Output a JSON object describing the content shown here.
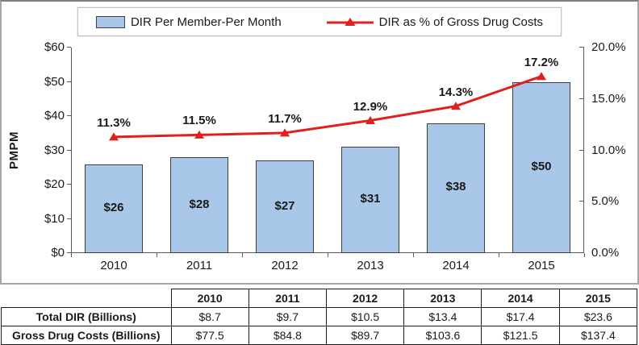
{
  "legend": {
    "bar_label": "DIR Per Member-Per Month",
    "line_label": "DIR as % of Gross Drug Costs"
  },
  "chart_data": {
    "type": "bar+line combo",
    "categories": [
      "2010",
      "2011",
      "2012",
      "2013",
      "2014",
      "2015"
    ],
    "series": [
      {
        "name": "DIR Per Member-Per Month",
        "type": "bar",
        "axis": "left",
        "values": [
          26,
          28,
          27,
          31,
          38,
          50
        ],
        "labels": [
          "$26",
          "$28",
          "$27",
          "$31",
          "$38",
          "$50"
        ]
      },
      {
        "name": "DIR as % of Gross Drug Costs",
        "type": "line",
        "axis": "right",
        "values": [
          11.3,
          11.5,
          11.7,
          12.9,
          14.3,
          17.2
        ],
        "labels": [
          "11.3%",
          "11.5%",
          "11.7%",
          "12.9%",
          "14.3%",
          "17.2%"
        ]
      }
    ],
    "left_axis": {
      "label": "PMPM",
      "min": 0,
      "max": 60,
      "ticks": [
        "$0",
        "$10",
        "$20",
        "$30",
        "$40",
        "$50",
        "$60"
      ]
    },
    "right_axis": {
      "min": 0,
      "max": 20,
      "ticks": [
        "0.0%",
        "5.0%",
        "10.0%",
        "15.0%",
        "20.0%"
      ]
    },
    "grid": "off",
    "legend_position": "top"
  },
  "table": {
    "col_headers": [
      "",
      "2010",
      "2011",
      "2012",
      "2013",
      "2014",
      "2015"
    ],
    "rows": [
      {
        "label": "Total DIR (Billions)",
        "values": [
          "$8.7",
          "$9.7",
          "$10.5",
          "$13.4",
          "$17.4",
          "$23.6"
        ]
      },
      {
        "label": "Gross Drug Costs (Billions)",
        "values": [
          "$77.5",
          "$84.8",
          "$89.7",
          "$103.6",
          "$121.5",
          "$137.4"
        ]
      }
    ]
  },
  "colors": {
    "bar_fill": "#A9C8E9",
    "bar_border": "#3f3f3f",
    "line": "#E01F1F",
    "axis": "#595959",
    "text": "#1a1a1a",
    "frame_border": "#a6a6a6",
    "legend_border": "#bfbfbf",
    "table_border": "#1a1a1a"
  }
}
